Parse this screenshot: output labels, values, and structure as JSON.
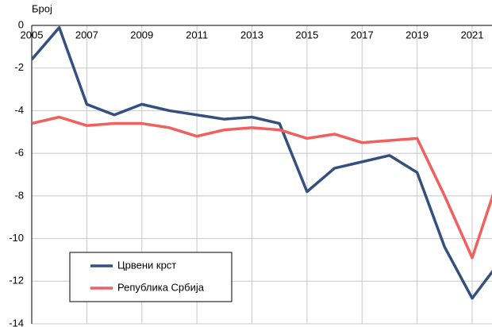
{
  "chart_data": {
    "type": "line",
    "y_label": "Број",
    "x": [
      2005,
      2006,
      2007,
      2008,
      2009,
      2010,
      2011,
      2012,
      2013,
      2014,
      2015,
      2016,
      2017,
      2018,
      2019,
      2020,
      2021,
      2022
    ],
    "series": [
      {
        "name": "Црвени крст",
        "color": "#34507e",
        "values": [
          -1.6,
          -0.1,
          -3.7,
          -4.2,
          -3.7,
          -4.0,
          -4.2,
          -4.4,
          -4.3,
          -4.6,
          -7.8,
          -6.7,
          -6.4,
          -6.1,
          -6.9,
          -10.4,
          -12.8,
          -11.1
        ]
      },
      {
        "name": "Република Србија",
        "color": "#f25f5f",
        "values": [
          -4.6,
          -4.3,
          -4.7,
          -4.6,
          -4.6,
          -4.8,
          -5.2,
          -4.9,
          -4.8,
          -4.9,
          -5.3,
          -5.1,
          -5.5,
          -5.4,
          -5.3,
          -8.0,
          -10.9,
          -7.0
        ]
      }
    ],
    "xlim": [
      2005,
      2021.72
    ],
    "xticks": [
      2005,
      2007,
      2009,
      2011,
      2013,
      2015,
      2017,
      2019,
      2021
    ],
    "ylim": [
      -14,
      0
    ],
    "yticks": [
      0,
      -2,
      -4,
      -6,
      -8,
      -10,
      -12,
      -14
    ],
    "grid": true,
    "legend": "lower left"
  }
}
